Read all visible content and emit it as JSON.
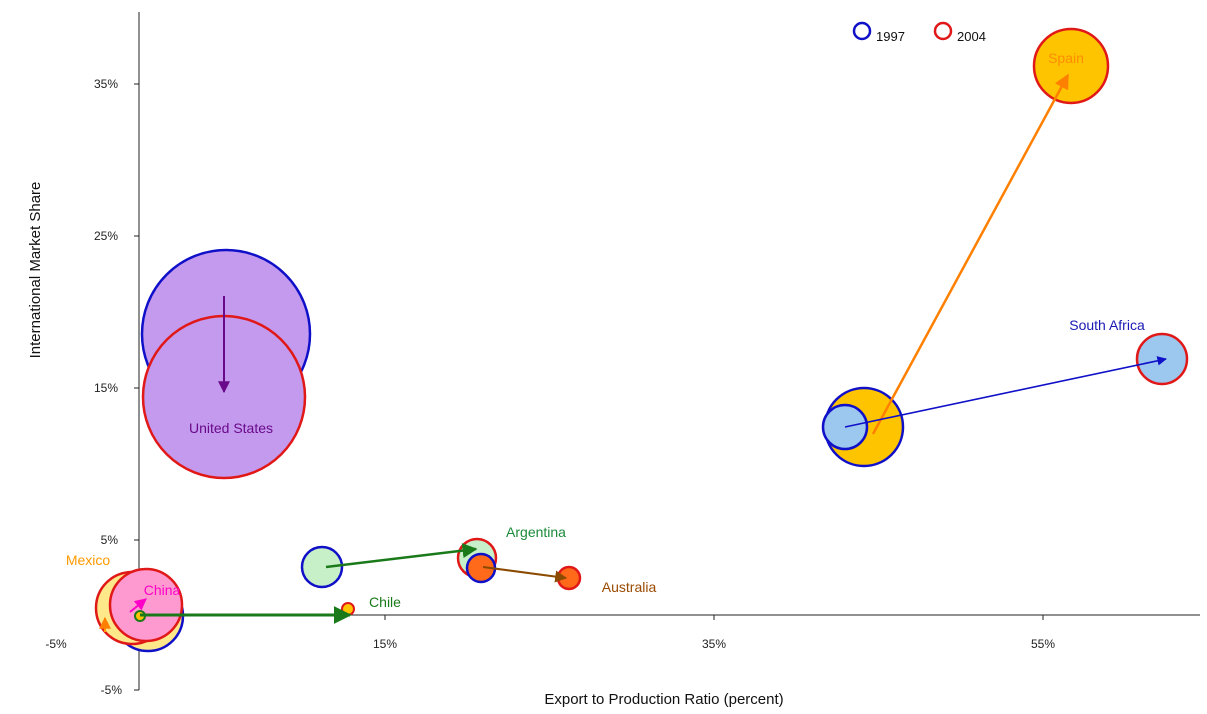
{
  "chart_data": {
    "type": "scatter",
    "subtype": "bubble",
    "title": "",
    "xlabel": "Export to Production Ratio (percent)",
    "ylabel": "International Market Share",
    "xlim": [
      -5,
      64
    ],
    "ylim": [
      -5,
      40
    ],
    "x_ticks": [
      "-5%",
      "15%",
      "35%",
      "55%"
    ],
    "y_ticks": [
      "-5%",
      "5%",
      "15%",
      "25%",
      "35%"
    ],
    "grid": false,
    "legend": {
      "position": "top-right",
      "entries": [
        {
          "label": "1997",
          "color": "#1010c8"
        },
        {
          "label": "2004",
          "color": "#e01818"
        }
      ]
    },
    "series": [
      {
        "name": "1997",
        "border_color": "#1010c8"
      },
      {
        "name": "2004",
        "border_color": "#e01818"
      }
    ],
    "countries": [
      {
        "name": "United States",
        "fill": "#c49aee",
        "label_color": "#6a0a8a",
        "arrow_color": "#6a0a8a",
        "p1997": {
          "x": 0.5,
          "y": 18.8,
          "size": 100
        },
        "p2004": {
          "x": 0.2,
          "y": 14.6,
          "size": 100
        }
      },
      {
        "name": "Spain",
        "fill": "#ffc400",
        "label_color": "#ff8c00",
        "arrow_color": "#ff8000",
        "p1997": {
          "x": 44.5,
          "y": 12.5,
          "size": 14
        },
        "p2004": {
          "x": 56.2,
          "y": 36.5,
          "size": 14
        }
      },
      {
        "name": "South Africa",
        "fill": "#9cc8f0",
        "label_color": "#1a1ab4",
        "arrow_color": "#1010c8",
        "p1997": {
          "x": 43.3,
          "y": 12.4,
          "size": 5
        },
        "p2004": {
          "x": 61.4,
          "y": 17.2,
          "size": 5
        }
      },
      {
        "name": "Argentina",
        "fill": "#c8f0c8",
        "label_color": "#1a8a3a",
        "arrow_color": "#1a7a1a",
        "p1997": {
          "x": 10.6,
          "y": 3.2,
          "size": 3
        },
        "p2004": {
          "x": 20.1,
          "y": 3.8,
          "size": 3
        }
      },
      {
        "name": "Australia",
        "fill": "#ff6a1a",
        "label_color": "#9a4a00",
        "arrow_color": "#8a4a00",
        "p1997": {
          "x": 20.5,
          "y": 3.2,
          "size": 1.2
        },
        "p2004": {
          "x": 25.8,
          "y": 2.3,
          "size": 0.8
        }
      },
      {
        "name": "Chile",
        "fill": "#ffc400",
        "label_color": "#1a7a1a",
        "arrow_color": "#1a7a1a",
        "p1997": {
          "x": -0.3,
          "y": 0.3,
          "size": 0.02
        },
        "p2004": {
          "x": 12.6,
          "y": 0.3,
          "size": 0.2
        }
      },
      {
        "name": "Mexico",
        "fill": "#ffe88a",
        "label_color": "#ff9a00",
        "arrow_color": "#ff9a00",
        "p1997": {
          "x": -1.5,
          "y": -1.8,
          "size": 11
        },
        "p2004": {
          "x": -0.6,
          "y": 0.6,
          "size": 11
        }
      },
      {
        "name": "China",
        "fill": "#ff9ad0",
        "label_color": "#ff00c8",
        "arrow_color": "#ff00c8",
        "p1997": {
          "x": 0.3,
          "y": 1.5,
          "size": 6
        },
        "p2004": {
          "x": 1.5,
          "y": 0.6,
          "size": 6
        }
      }
    ]
  }
}
